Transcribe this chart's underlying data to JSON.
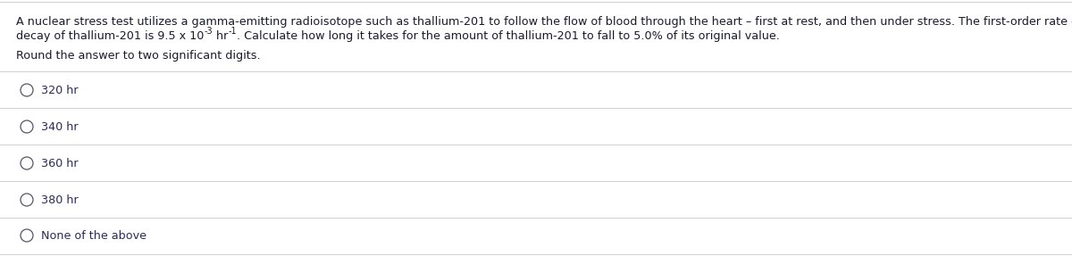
{
  "bg_color": "#ffffff",
  "border_color": "#d0d0d0",
  "text_color": "#1a1a2e",
  "option_text_color": "#2a2a5a",
  "font_size_main": 9.2,
  "font_size_super": 6.9,
  "paragraph_line1": "A nuclear stress test utilizes a gamma-emitting radioisotope such as thallium-201 to follow the flow of blood through the heart – first at rest, and then under stress. The first-order rate constant for the",
  "paragraph_line2_pre": "decay of thallium-201 is 9.5 x 10",
  "paragraph_line2_sup1": "-3",
  "paragraph_line2_mid": " hr",
  "paragraph_line2_sup2": "-1",
  "paragraph_line2_post": ". Calculate how long it takes for the amount of thallium-201 to fall to 5.0% of its original value.",
  "subtext": "Round the answer to two significant digits.",
  "options": [
    "320 hr",
    "340 hr",
    "360 hr",
    "380 hr",
    "None of the above"
  ]
}
